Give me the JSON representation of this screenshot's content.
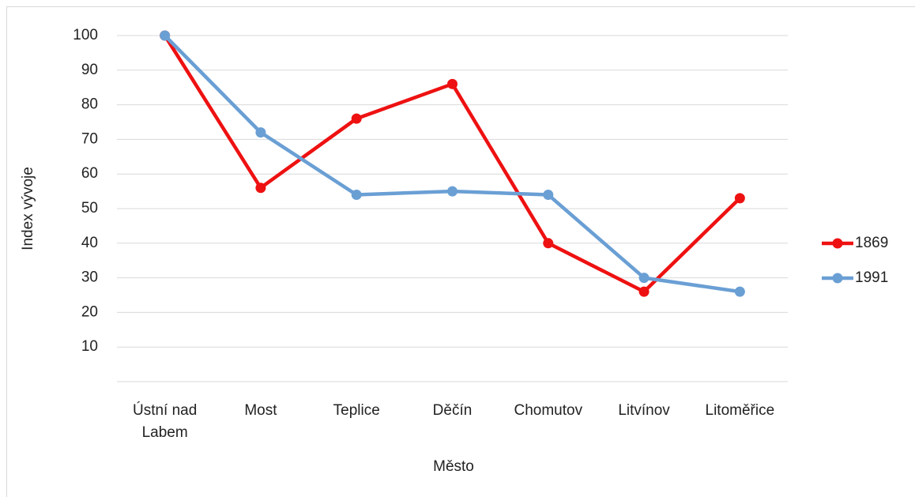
{
  "chart_data": {
    "type": "line",
    "x_label": "Město",
    "y_label": "Index vývoje",
    "categories": [
      "Ústní nad Labem",
      "Most",
      "Teplice",
      "Děčín",
      "Chomutov",
      "Litvínov",
      "Litoměřice"
    ],
    "series": [
      {
        "name": "1869",
        "color": "#ee1111",
        "values": [
          100,
          56,
          76,
          86,
          40,
          26,
          53
        ]
      },
      {
        "name": "1991",
        "color": "#6a9fd4",
        "values": [
          100,
          72,
          54,
          55,
          54,
          30,
          26
        ]
      }
    ],
    "ylim": [
      0,
      100
    ],
    "yticks": [
      10,
      20,
      30,
      40,
      50,
      60,
      70,
      80,
      90,
      100
    ],
    "grid": true,
    "legend": "right"
  }
}
